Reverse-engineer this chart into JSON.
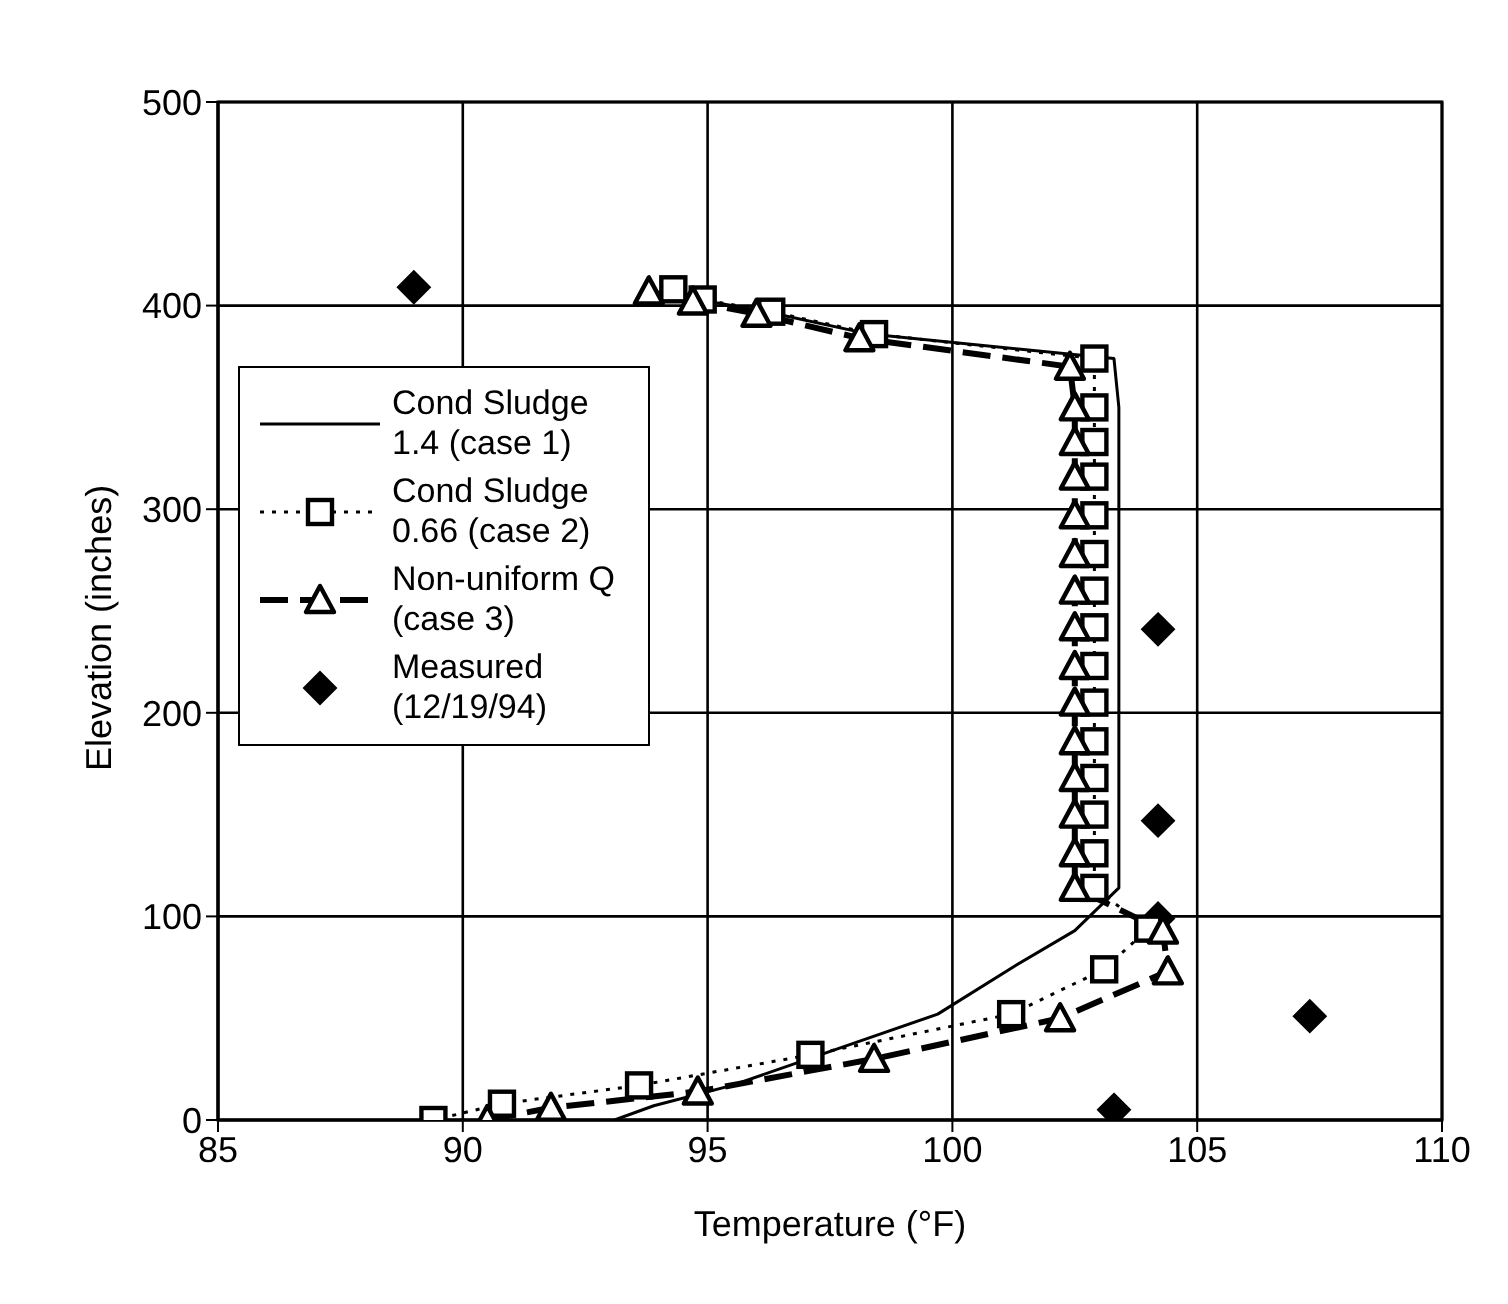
{
  "chart_data": {
    "type": "line",
    "xlabel": "Temperature (°F)",
    "ylabel": "Elevation (inches)",
    "xlim": [
      85,
      110
    ],
    "xticks": [
      85,
      90,
      95,
      100,
      105,
      110
    ],
    "ylim": [
      0,
      500
    ],
    "yticks": [
      0,
      100,
      200,
      300,
      400,
      500
    ],
    "grid": true,
    "legend": "left",
    "series": [
      {
        "name": "Cond Sludge 1.4 (case 1)",
        "color": "#000000",
        "marker": "none",
        "line_style": "solid",
        "x": [
          94.1,
          94.8,
          96.2,
          98.3,
          103.3,
          103.4,
          103.4,
          103.4,
          103.4,
          103.4,
          103.4,
          103.4,
          103.4,
          103.4,
          103.4,
          103.4,
          103.4,
          103.4,
          103.4,
          102.5,
          101.3,
          99.7,
          95.5,
          93.9,
          93.1
        ],
        "values": [
          408,
          403,
          397,
          386,
          374,
          350,
          333,
          316,
          297,
          278,
          260,
          242,
          223,
          205,
          186,
          168,
          150,
          131,
          114,
          93,
          76,
          52,
          17,
          7,
          0
        ]
      },
      {
        "name": "Cond Sludge 0.66 (case 2)",
        "color": "#000000",
        "marker": "square",
        "line_style": "dotted",
        "x": [
          94.3,
          94.9,
          96.3,
          98.4,
          102.9,
          102.9,
          102.9,
          102.9,
          102.9,
          102.9,
          102.9,
          102.9,
          102.9,
          102.9,
          102.9,
          102.9,
          102.9,
          102.9,
          102.9,
          104.0,
          103.1,
          101.2,
          97.1,
          93.6,
          90.8,
          89.4
        ],
        "values": [
          408,
          403,
          397,
          386,
          374,
          350,
          333,
          316,
          297,
          278,
          260,
          242,
          223,
          205,
          186,
          168,
          150,
          131,
          114,
          94,
          74,
          52,
          32,
          17,
          8,
          0
        ]
      },
      {
        "name": "Non-uniform Q (case 3)",
        "color": "#000000",
        "marker": "triangle",
        "line_style": "dashed",
        "x": [
          93.8,
          94.7,
          96.0,
          98.1,
          102.4,
          102.5,
          102.5,
          102.5,
          102.5,
          102.5,
          102.5,
          102.5,
          102.5,
          102.5,
          102.5,
          102.5,
          102.5,
          102.5,
          102.5,
          104.3,
          104.4,
          102.2,
          98.4,
          94.8,
          91.8,
          90.5
        ],
        "values": [
          407,
          402,
          396,
          384,
          370,
          350,
          333,
          316,
          297,
          278,
          260,
          242,
          223,
          205,
          186,
          168,
          150,
          131,
          114,
          93,
          73,
          50,
          30,
          14,
          6,
          0
        ]
      },
      {
        "name": "Measured (12/19/94)",
        "type": "scatter",
        "color": "#000000",
        "marker": "diamond",
        "x": [
          89.0,
          104.2,
          104.2,
          104.2,
          107.3,
          103.3
        ],
        "values": [
          409,
          241,
          147,
          99,
          51,
          5
        ]
      }
    ]
  }
}
